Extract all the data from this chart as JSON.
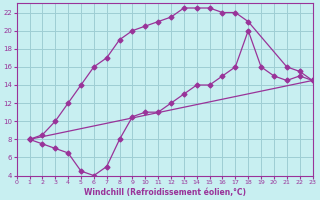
{
  "xlabel": "Windchill (Refroidissement éolien,°C)",
  "bg_color": "#c8eff1",
  "grid_color": "#9ecdd4",
  "line_color": "#993399",
  "xlim": [
    0,
    23
  ],
  "ylim": [
    4,
    23
  ],
  "xticks": [
    0,
    1,
    2,
    3,
    4,
    5,
    6,
    7,
    8,
    9,
    10,
    11,
    12,
    13,
    14,
    15,
    16,
    17,
    18,
    19,
    20,
    21,
    22,
    23
  ],
  "yticks": [
    4,
    6,
    8,
    10,
    12,
    14,
    16,
    18,
    20,
    22
  ],
  "line1_x": [
    1,
    2,
    3,
    4,
    5,
    6,
    7,
    8,
    9,
    10,
    11,
    12,
    13,
    14,
    15,
    16,
    17,
    18,
    21,
    22,
    23
  ],
  "line1_y": [
    8,
    8.5,
    10,
    12,
    14,
    16,
    17,
    19,
    20,
    20.5,
    21,
    21.5,
    22.5,
    22.5,
    22.5,
    22,
    22,
    21,
    16,
    15.5,
    14.5
  ],
  "line2_x": [
    1,
    2,
    3,
    4,
    5,
    6,
    7,
    8,
    9,
    10,
    11,
    12,
    13,
    14,
    15,
    16,
    17,
    18,
    19,
    20,
    21,
    22,
    23
  ],
  "line2_y": [
    8,
    7.5,
    7,
    6.5,
    4.5,
    4,
    5,
    8,
    10.5,
    11,
    11,
    12,
    13,
    14,
    14,
    15,
    16,
    20,
    16,
    15,
    14.5,
    15,
    14.5
  ],
  "line3_x": [
    1,
    23
  ],
  "line3_y": [
    8,
    14.5
  ]
}
